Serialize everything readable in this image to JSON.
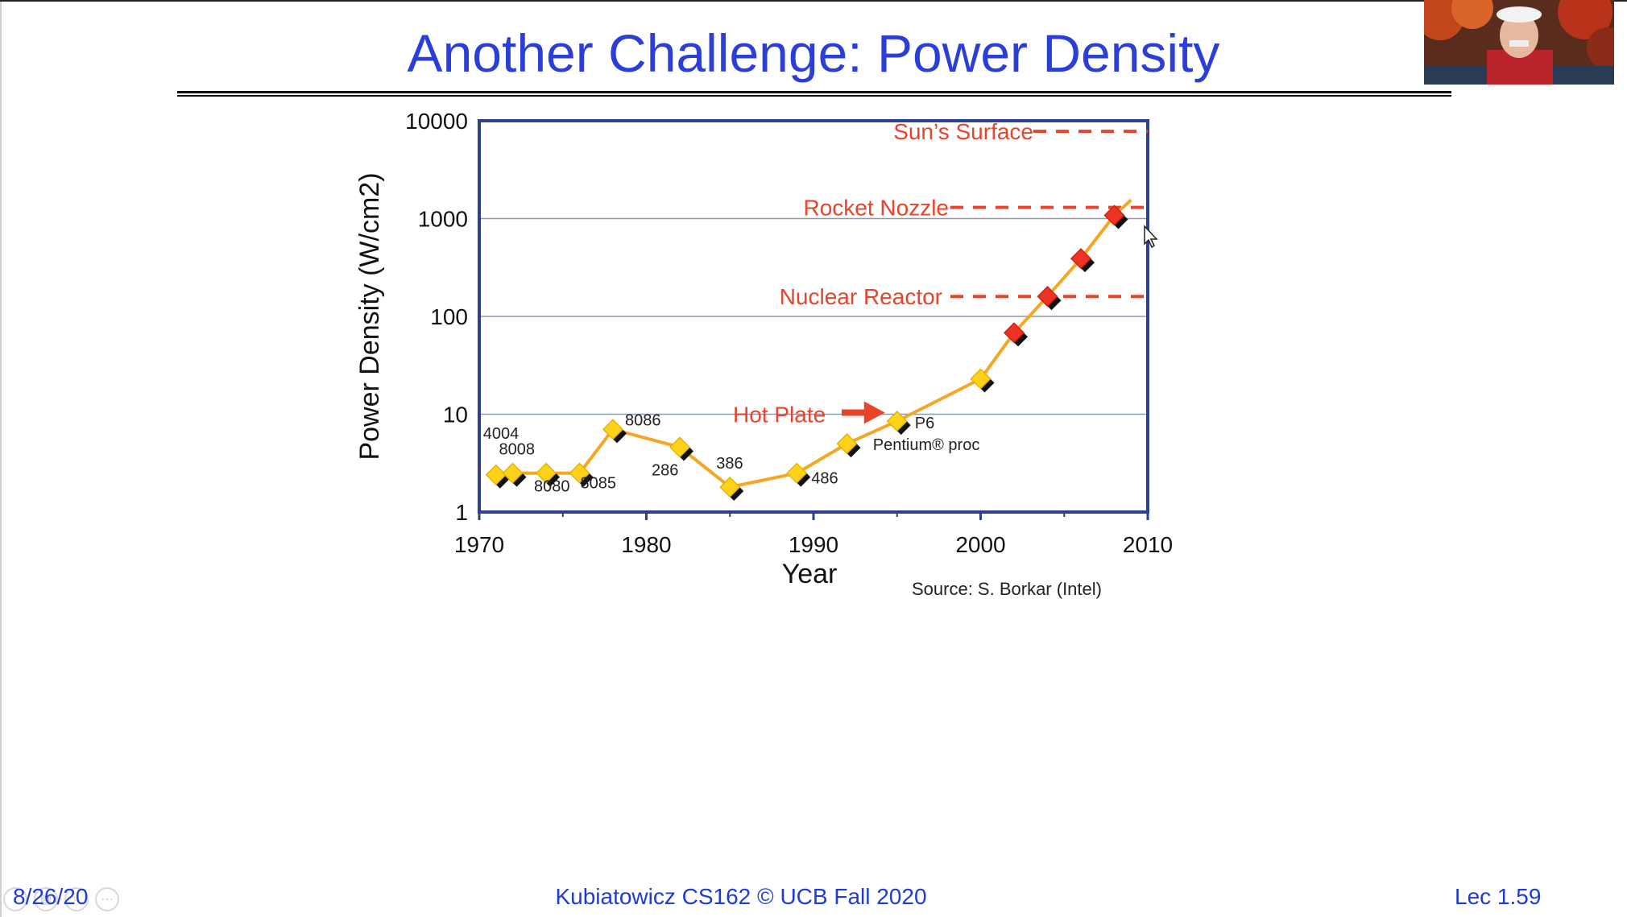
{
  "slide": {
    "title": "Another Challenge: Power Density",
    "footer": {
      "date": "8/26/20",
      "center": "Kubiatowicz CS162 © UCB Fall 2020",
      "lecture": "Lec 1.59"
    }
  },
  "toolbar_icons": [
    "prev-slide-icon",
    "slides-grid-icon",
    "zoom-icon",
    "more-options-icon"
  ],
  "colors": {
    "title": "#2b3fd8",
    "line": "#f5a623",
    "marker_yellow": "#ffd21a",
    "marker_red": "#ee3322",
    "reference": "#e8442a"
  },
  "chart_data": {
    "type": "line",
    "ylabel": "Power Density (W/cm2)",
    "xlabel": "Year",
    "xlim": [
      1970,
      2010
    ],
    "ylim": [
      1,
      10000
    ],
    "yscale": "log",
    "grid": "horizontal",
    "x_ticks": [
      "1970",
      "1980",
      "1990",
      "2000",
      "2010"
    ],
    "y_ticks": [
      "1",
      "10",
      "100",
      "1000",
      "10000"
    ],
    "source": "Source: S. Borkar (Intel)",
    "series": [
      {
        "points": [
          {
            "x": 1971,
            "y": 2.4,
            "label": "4004"
          },
          {
            "x": 1972,
            "y": 2.5,
            "label": "8008"
          },
          {
            "x": 1974,
            "y": 2.5,
            "label": "8080"
          },
          {
            "x": 1976,
            "y": 2.5,
            "label": "8085"
          },
          {
            "x": 1978,
            "y": 7,
            "label": "8086"
          },
          {
            "x": 1982,
            "y": 4.6,
            "label": "286"
          },
          {
            "x": 1985,
            "y": 1.8,
            "label": "386"
          },
          {
            "x": 1989,
            "y": 2.5,
            "label": "486"
          },
          {
            "x": 1992,
            "y": 5,
            "label": ""
          },
          {
            "x": 1995,
            "y": 8.5,
            "label": "P6"
          },
          {
            "x": 2000,
            "y": 23,
            "label": ""
          },
          {
            "x": 2002,
            "y": 68,
            "label": ""
          },
          {
            "x": 2004,
            "y": 160,
            "label": ""
          },
          {
            "x": 2006,
            "y": 390,
            "label": ""
          },
          {
            "x": 2008,
            "y": 1080,
            "label": ""
          }
        ]
      }
    ],
    "extra_labels": {
      "pentium": "Pentium® proc"
    },
    "reference_lines": [
      {
        "label": "Sun’s Surface",
        "y": 7800
      },
      {
        "label": "Rocket Nozzle",
        "y": 1300
      },
      {
        "label": "Nuclear Reactor",
        "y": 160
      }
    ],
    "annotation": {
      "label": "Hot Plate",
      "points_to_x": 1995,
      "y": 10
    }
  }
}
